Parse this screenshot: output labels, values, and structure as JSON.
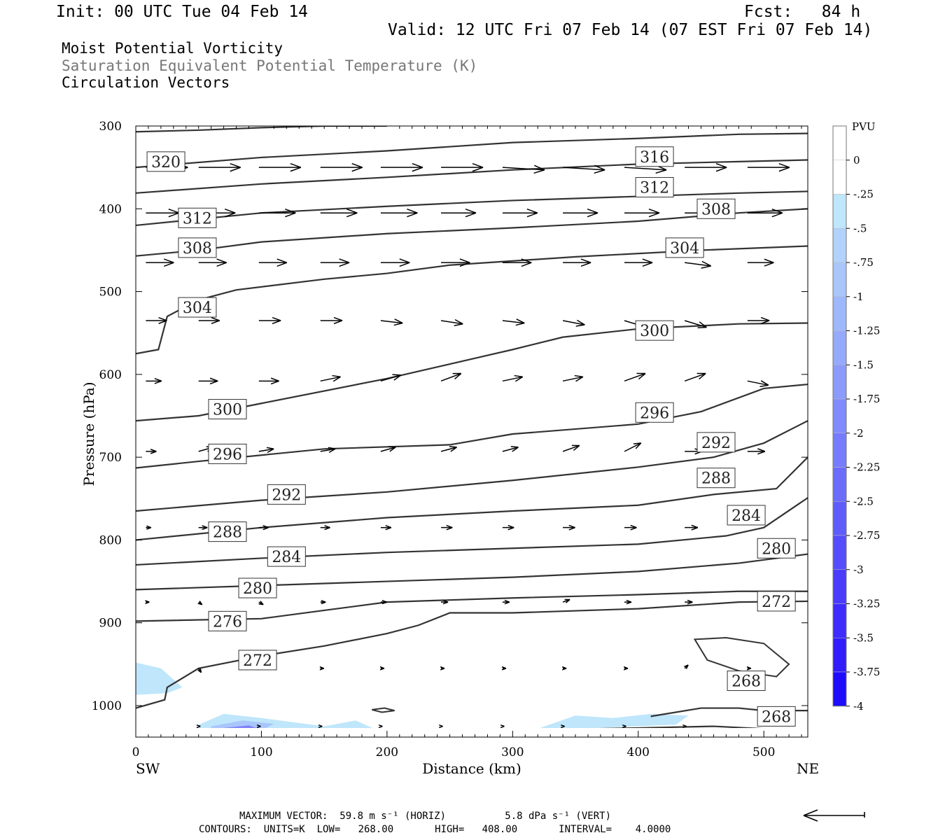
{
  "header": {
    "init": "Init: 00 UTC Tue 04 Feb 14",
    "fcst": "Fcst:   84 h",
    "valid": "Valid: 12 UTC Fri 07 Feb 14 (07 EST Fri 07 Feb 14)",
    "line1": "Moist Potential Vorticity",
    "line2": "Saturation Equivalent Potential Temperature (K)",
    "line3": "Circulation Vectors"
  },
  "footer": {
    "max_vector": "MAXIMUM VECTOR:  59.8 m s⁻¹ (HORIZ)          5.8 dPa s⁻¹ (VERT)",
    "contours": "CONTOURS:  UNITS=K  LOW=   268.00       HIGH=   408.00       INTERVAL=    4.0000"
  },
  "chart_data": {
    "type": "cross-section",
    "xlabel": "Distance (km)",
    "ylabel": "Pressure (hPa)",
    "xlim": [
      0,
      535
    ],
    "ylim": [
      300,
      1030
    ],
    "x_ticks": [
      0,
      100,
      200,
      300,
      400,
      500
    ],
    "y_ticks": [
      300,
      400,
      500,
      600,
      700,
      800,
      900,
      1000
    ],
    "left_end_label": "SW",
    "right_end_label": "NE",
    "colorbar": {
      "title": "PVU",
      "labels": [
        "0",
        "-.25",
        "-.5",
        "-.75",
        "-1",
        "-1.25",
        "-1.5",
        "-1.75",
        "-2",
        "-2.25",
        "-2.5",
        "-2.75",
        "-3",
        "-3.25",
        "-3.5",
        "-3.75",
        "-4"
      ],
      "colors": [
        "#ffffff",
        "#ffffff",
        "#bfe6fb",
        "#b2d2fb",
        "#a9c6fb",
        "#9fb8fb",
        "#95aafb",
        "#8b9bfb",
        "#808cfb",
        "#767cfb",
        "#6c6cfb",
        "#605cfb",
        "#554cfb",
        "#4a3cfb",
        "#3d2cfb",
        "#311cfb",
        "#1e0cfb"
      ]
    },
    "contours": [
      {
        "value": 320,
        "points": [
          [
            0,
            307
          ],
          [
            50,
            305
          ],
          [
            100,
            302
          ],
          [
            150,
            300
          ],
          [
            200,
            300
          ]
        ]
      },
      {
        "value": 316,
        "points": [
          [
            0,
            350
          ],
          [
            100,
            338
          ],
          [
            200,
            330
          ],
          [
            300,
            320
          ],
          [
            400,
            315
          ],
          [
            480,
            310
          ],
          [
            535,
            309
          ]
        ]
      },
      {
        "value": 312,
        "points": [
          [
            0,
            381
          ],
          [
            100,
            370
          ],
          [
            200,
            362
          ],
          [
            300,
            353
          ],
          [
            400,
            346
          ],
          [
            480,
            343
          ],
          [
            535,
            341
          ]
        ]
      },
      {
        "value": 308,
        "points": [
          [
            0,
            420
          ],
          [
            100,
            405
          ],
          [
            200,
            397
          ],
          [
            300,
            390
          ],
          [
            400,
            385
          ],
          [
            480,
            381
          ],
          [
            535,
            379
          ]
        ]
      },
      {
        "value": 304,
        "points": [
          [
            0,
            457
          ],
          [
            50,
            450
          ],
          [
            100,
            440
          ],
          [
            200,
            430
          ],
          [
            300,
            423
          ],
          [
            400,
            415
          ],
          [
            480,
            405
          ],
          [
            535,
            400
          ]
        ]
      },
      {
        "value": 300,
        "points": [
          [
            0,
            575
          ],
          [
            18,
            570
          ],
          [
            25,
            530
          ],
          [
            50,
            510
          ],
          [
            80,
            498
          ],
          [
            150,
            485
          ],
          [
            200,
            478
          ],
          [
            250,
            468
          ],
          [
            350,
            458
          ],
          [
            450,
            450
          ],
          [
            535,
            445
          ]
        ]
      },
      {
        "value": 296,
        "points": [
          [
            0,
            656
          ],
          [
            50,
            650
          ],
          [
            100,
            635
          ],
          [
            200,
            605
          ],
          [
            300,
            570
          ],
          [
            340,
            555
          ],
          [
            400,
            545
          ],
          [
            480,
            539
          ],
          [
            535,
            538
          ]
        ]
      },
      {
        "value": 292,
        "points": [
          [
            0,
            713
          ],
          [
            50,
            705
          ],
          [
            150,
            690
          ],
          [
            250,
            685
          ],
          [
            300,
            672
          ],
          [
            400,
            660
          ],
          [
            450,
            645
          ],
          [
            500,
            617
          ],
          [
            535,
            612
          ]
        ]
      },
      {
        "value": 288,
        "points": [
          [
            0,
            765
          ],
          [
            100,
            752
          ],
          [
            200,
            742
          ],
          [
            300,
            728
          ],
          [
            400,
            712
          ],
          [
            460,
            700
          ],
          [
            500,
            683
          ],
          [
            535,
            656
          ]
        ]
      },
      {
        "value": 284,
        "points": [
          [
            0,
            800
          ],
          [
            100,
            785
          ],
          [
            200,
            773
          ],
          [
            300,
            765
          ],
          [
            400,
            758
          ],
          [
            460,
            745
          ],
          [
            510,
            738
          ],
          [
            535,
            700
          ]
        ]
      },
      {
        "value": 280,
        "points": [
          [
            0,
            830
          ],
          [
            100,
            822
          ],
          [
            200,
            815
          ],
          [
            300,
            810
          ],
          [
            400,
            805
          ],
          [
            470,
            795
          ],
          [
            500,
            785
          ],
          [
            535,
            749
          ]
        ]
      },
      {
        "value": 276,
        "points": [
          [
            0,
            860
          ],
          [
            100,
            855
          ],
          [
            200,
            850
          ],
          [
            300,
            845
          ],
          [
            400,
            838
          ],
          [
            480,
            828
          ],
          [
            535,
            817
          ]
        ]
      },
      {
        "value": 272,
        "points": [
          [
            0,
            898
          ],
          [
            100,
            895
          ],
          [
            150,
            885
          ],
          [
            200,
            875
          ],
          [
            300,
            870
          ],
          [
            400,
            866
          ],
          [
            480,
            862
          ],
          [
            535,
            862
          ]
        ]
      },
      {
        "value": 268,
        "points": [
          [
            0,
            1003
          ],
          [
            23,
            993
          ],
          [
            25,
            978
          ],
          [
            50,
            955
          ],
          [
            100,
            940
          ],
          [
            150,
            928
          ],
          [
            200,
            913
          ],
          [
            225,
            903
          ],
          [
            250,
            888
          ],
          [
            300,
            888
          ],
          [
            400,
            883
          ],
          [
            480,
            875
          ],
          [
            535,
            874
          ]
        ]
      },
      {
        "value": 268,
        "points": [
          [
            410,
            1013
          ],
          [
            450,
            1003
          ],
          [
            480,
            1003
          ],
          [
            500,
            1006
          ],
          [
            535,
            1006
          ]
        ]
      },
      {
        "value": 272,
        "points": [
          [
            0,
            1030
          ],
          [
            200,
            1032
          ],
          [
            300,
            1030
          ],
          [
            400,
            1027
          ],
          [
            460,
            1025
          ],
          [
            500,
            1028
          ],
          [
            535,
            1028
          ]
        ]
      }
    ],
    "contour_labels": [
      {
        "text": "320",
        "x": 24,
        "y": 343
      },
      {
        "text": "316",
        "x": 413,
        "y": 337
      },
      {
        "text": "312",
        "x": 413,
        "y": 374
      },
      {
        "text": "312",
        "x": 49,
        "y": 411
      },
      {
        "text": "308",
        "x": 462,
        "y": 400
      },
      {
        "text": "308",
        "x": 49,
        "y": 447
      },
      {
        "text": "304",
        "x": 437,
        "y": 447
      },
      {
        "text": "304",
        "x": 49,
        "y": 519
      },
      {
        "text": "300",
        "x": 413,
        "y": 547
      },
      {
        "text": "300",
        "x": 73,
        "y": 642
      },
      {
        "text": "296",
        "x": 413,
        "y": 646
      },
      {
        "text": "296",
        "x": 73,
        "y": 696
      },
      {
        "text": "292",
        "x": 462,
        "y": 682
      },
      {
        "text": "292",
        "x": 120,
        "y": 745
      },
      {
        "text": "288",
        "x": 462,
        "y": 725
      },
      {
        "text": "288",
        "x": 73,
        "y": 790
      },
      {
        "text": "284",
        "x": 486,
        "y": 770
      },
      {
        "text": "284",
        "x": 120,
        "y": 820
      },
      {
        "text": "280",
        "x": 510,
        "y": 810
      },
      {
        "text": "280",
        "x": 97,
        "y": 858
      },
      {
        "text": "276",
        "x": 73,
        "y": 898
      },
      {
        "text": "272",
        "x": 510,
        "y": 874
      },
      {
        "text": "272",
        "x": 97,
        "y": 945
      },
      {
        "text": "268",
        "x": 486,
        "y": 970
      },
      {
        "text": "268",
        "x": 510,
        "y": 1013
      }
    ],
    "pv_regions": [
      {
        "pvu": -0.25,
        "points": [
          [
            0,
            948
          ],
          [
            20,
            955
          ],
          [
            37,
            978
          ],
          [
            25,
            985
          ],
          [
            0,
            987
          ]
        ]
      },
      {
        "pvu": -0.25,
        "points": [
          [
            50,
            1023
          ],
          [
            70,
            1010
          ],
          [
            100,
            1015
          ],
          [
            150,
            1025
          ],
          [
            175,
            1018
          ],
          [
            190,
            1028
          ],
          [
            200,
            1030
          ],
          [
            50,
            1030
          ]
        ]
      },
      {
        "pvu": -0.75,
        "points": [
          [
            60,
            1025
          ],
          [
            85,
            1018
          ],
          [
            110,
            1022
          ],
          [
            100,
            1030
          ],
          [
            60,
            1030
          ]
        ]
      },
      {
        "pvu": -1.5,
        "points": [
          [
            70,
            1027
          ],
          [
            90,
            1024
          ],
          [
            100,
            1029
          ],
          [
            70,
            1030
          ]
        ]
      },
      {
        "pvu": -0.25,
        "points": [
          [
            320,
            1028
          ],
          [
            350,
            1012
          ],
          [
            380,
            1015
          ],
          [
            410,
            1010
          ],
          [
            440,
            1012
          ],
          [
            430,
            1023
          ],
          [
            320,
            1030
          ]
        ]
      }
    ],
    "closed_contours": [
      {
        "value": 268,
        "points": [
          [
            445,
            920
          ],
          [
            470,
            918
          ],
          [
            500,
            925
          ],
          [
            520,
            950
          ],
          [
            510,
            965
          ],
          [
            480,
            958
          ],
          [
            455,
            945
          ]
        ]
      },
      {
        "value": 268,
        "points": [
          [
            188,
            1005
          ],
          [
            198,
            1003
          ],
          [
            206,
            1006
          ],
          [
            196,
            1008
          ]
        ]
      }
    ],
    "vectors": {
      "max_horiz_ms": 59.8,
      "max_vert_dpas": 5.8,
      "rows": [
        {
          "p": 350,
          "u": [
            48,
            48,
            48,
            48,
            48,
            48,
            48,
            48,
            48,
            48,
            48
          ],
          "w": [
            0,
            0,
            0,
            0,
            0,
            0,
            0.3,
            0.3,
            0.3,
            0,
            0
          ]
        },
        {
          "p": 405,
          "u": [
            38,
            42,
            42,
            42,
            42,
            40,
            40,
            40,
            40,
            40,
            40
          ],
          "w": [
            0,
            0,
            0,
            0,
            0,
            0,
            0,
            0,
            0,
            0,
            0
          ]
        },
        {
          "p": 465,
          "u": [
            32,
            32,
            32,
            33,
            33,
            33,
            33,
            32,
            32,
            30,
            30
          ],
          "w": [
            0,
            0,
            0,
            0,
            0,
            0,
            0,
            0,
            0,
            0.4,
            0
          ]
        },
        {
          "p": 535,
          "u": [
            24,
            24,
            25,
            25,
            25,
            25,
            25,
            25,
            25,
            25,
            25
          ],
          "w": [
            0,
            0,
            0,
            0,
            0.3,
            0.4,
            0.3,
            0.5,
            0.8,
            0.8,
            0
          ]
        },
        {
          "p": 608,
          "u": [
            18,
            22,
            23,
            23,
            23,
            23,
            23,
            23,
            24,
            24,
            24
          ],
          "w": [
            0,
            0,
            0,
            -0.5,
            -0.7,
            -0.9,
            -0.5,
            -0.5,
            -0.9,
            -0.9,
            0.5
          ]
        },
        {
          "p": 693,
          "u": [
            12,
            17,
            17,
            17,
            17,
            18,
            18,
            19,
            19,
            20,
            20
          ],
          "w": [
            0,
            -0.5,
            -0.3,
            -0.3,
            -0.5,
            -0.5,
            -0.5,
            -0.7,
            -1,
            0,
            0
          ]
        },
        {
          "p": 785,
          "u": [
            6,
            10,
            11,
            11,
            12,
            13,
            13,
            14,
            14,
            15,
            0
          ],
          "w": [
            0,
            0,
            0,
            0,
            0,
            0,
            0,
            0,
            0,
            0,
            0
          ]
        },
        {
          "p": 875,
          "u": [
            4,
            4,
            5,
            6,
            7,
            8,
            8,
            8,
            8,
            9,
            0
          ],
          "w": [
            0,
            0.3,
            0.3,
            0,
            0,
            0,
            0,
            -0.3,
            0,
            0,
            0
          ]
        },
        {
          "p": 955,
          "u": [
            0,
            3,
            4,
            4,
            4,
            4,
            4,
            4,
            4,
            4,
            4
          ],
          "w": [
            0,
            0.5,
            0,
            0,
            0,
            0,
            0,
            0,
            0,
            -0.4,
            0
          ]
        },
        {
          "p": 1025,
          "u": [
            0,
            2,
            2,
            2,
            2,
            2,
            2,
            2,
            2,
            2,
            0
          ],
          "w": [
            0,
            0,
            0,
            0,
            0,
            0,
            0,
            0,
            0,
            0,
            0
          ]
        }
      ],
      "x": [
        8,
        50,
        98,
        147,
        195,
        243,
        292,
        340,
        389,
        437,
        487
      ]
    },
    "reference_vector_dir": "left"
  }
}
